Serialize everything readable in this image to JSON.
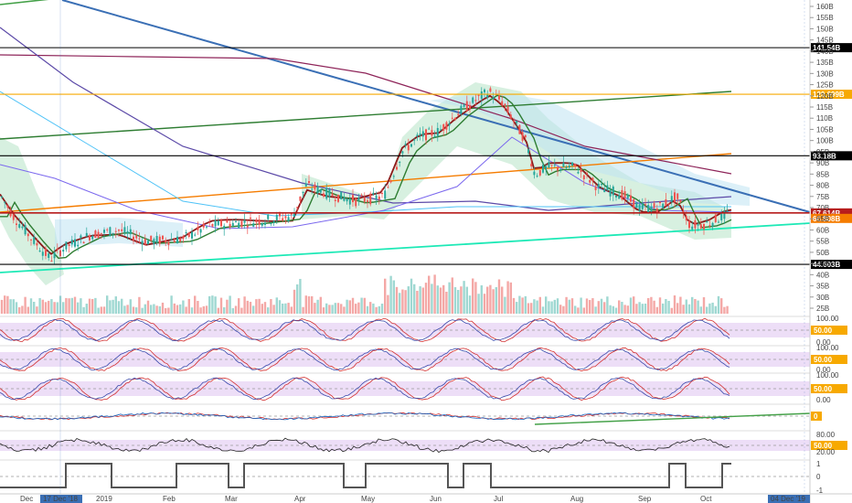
{
  "chart_data": {
    "type": "candlestick",
    "price_axis": {
      "ticks": [
        "160B",
        "155B",
        "150B",
        "145B",
        "140B",
        "135B",
        "130B",
        "125B",
        "120B",
        "115B",
        "110B",
        "105B",
        "100B",
        "95B",
        "90B",
        "85B",
        "80B",
        "75B",
        "70B",
        "65B",
        "60B",
        "55B",
        "50B",
        "45B",
        "40B",
        "35B",
        "30B",
        "25B"
      ]
    },
    "price_markers": [
      {
        "label": "141.54B",
        "value": 141.54,
        "color": "#000000"
      },
      {
        "label": "120.699B",
        "value": 120.699,
        "color": "#f7a900"
      },
      {
        "label": "93.18B",
        "value": 93.18,
        "color": "#000000"
      },
      {
        "label": "67.614B",
        "value": 67.614,
        "color": "#b71c1c"
      },
      {
        "label": "66.808B",
        "value": 66.808,
        "color": "#f57c00"
      },
      {
        "label": "44.603B",
        "value": 44.603,
        "color": "#000000"
      }
    ],
    "time_axis": {
      "ticks": [
        "Dec",
        "2019",
        "Feb",
        "Mar",
        "Apr",
        "May",
        "Jun",
        "Jul",
        "Aug",
        "Sep",
        "Oct"
      ],
      "highlight_start": "17 Dec '18",
      "highlight_end": "04 Dec '19"
    },
    "indicator_panels": [
      {
        "name": "stoch-1",
        "ticks": [
          "100.00",
          "50.00",
          "0.00"
        ],
        "marker": "50.00"
      },
      {
        "name": "stoch-2",
        "ticks": [
          "100.00",
          "50.00",
          "0.00"
        ],
        "marker": "50.00"
      },
      {
        "name": "stoch-3",
        "ticks": [
          "100.00",
          "50.00",
          "0.00"
        ],
        "marker": "50.00"
      },
      {
        "name": "macd",
        "ticks": [],
        "marker": "0"
      },
      {
        "name": "rsi",
        "ticks": [
          "80.00",
          "50.00",
          "20.00"
        ],
        "marker": "50.00"
      },
      {
        "name": "signal",
        "ticks": [
          "1",
          "0",
          "-1"
        ],
        "marker": ""
      }
    ],
    "colors": {
      "up": "#26a69a",
      "down": "#ef5350",
      "marker_label_bg": "#f7a900"
    }
  }
}
